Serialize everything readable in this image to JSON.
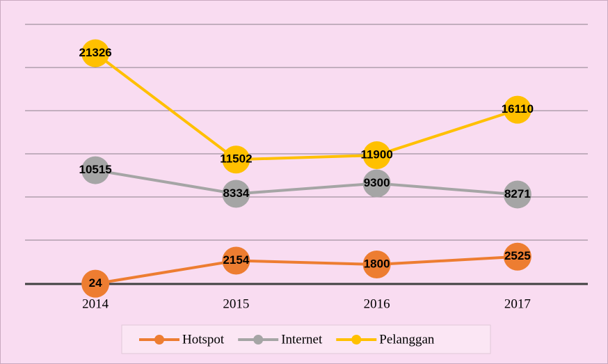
{
  "chart_data": {
    "type": "line",
    "categories": [
      "2014",
      "2015",
      "2016",
      "2017"
    ],
    "series": [
      {
        "name": "Hotspot",
        "color": "#ed7d31",
        "values": [
          24,
          2154,
          1800,
          2525
        ]
      },
      {
        "name": "Internet",
        "color": "#a5a5a5",
        "values": [
          10515,
          8334,
          9300,
          8271
        ]
      },
      {
        "name": "Pelanggan",
        "color": "#ffc000",
        "values": [
          21326,
          11502,
          11900,
          16110
        ]
      }
    ],
    "ylim": [
      0,
      24000
    ],
    "legend": "bottom"
  }
}
